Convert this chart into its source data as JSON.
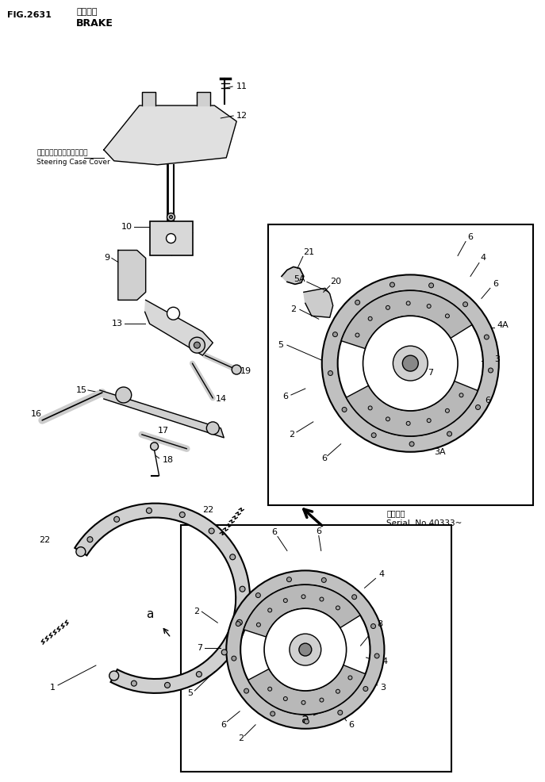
{
  "title_fig": "FIG.2631",
  "title_jp": "ブレーキ",
  "title_en": "BRAKE",
  "label_jp": "ステアリングケースカバー",
  "label_en": "Steering Case Cover",
  "serial_jp": "適用号機",
  "serial_en": "Serial  No.40333~",
  "bg_color": "#ffffff",
  "line_color": "#000000",
  "fig_width": 6.87,
  "fig_height": 9.86
}
